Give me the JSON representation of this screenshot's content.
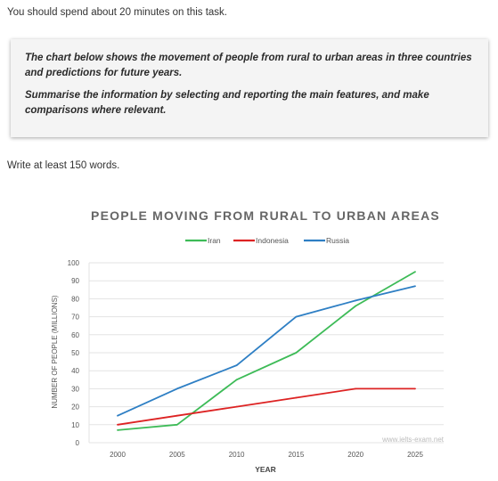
{
  "intro": "You should spend about 20 minutes on this task.",
  "task": {
    "paragraph1": "The chart below shows the movement of people from rural to urban areas in three countries and predictions for future years.",
    "paragraph2": "Summarise the information by selecting and reporting the main features, and make comparisons where relevant."
  },
  "write_prompt": "Write at least 150 words.",
  "watermark": "www.ielts-exam.net",
  "colors": {
    "Iran": "#3dbb57",
    "Indonesia": "#dd2323",
    "Russia": "#2e7fc4",
    "grid": "#e3e3e3"
  },
  "chart_data": {
    "type": "line",
    "title": "PEOPLE MOVING FROM RURAL TO URBAN AREAS",
    "xlabel": "YEAR",
    "ylabel": "NUMBER OF PEOPLE (MILLIONS)",
    "x": [
      2000,
      2005,
      2010,
      2015,
      2020,
      2025
    ],
    "x_ticks": [
      "2000",
      "2005",
      "2010",
      "2015",
      "2020",
      "2025"
    ],
    "y_ticks": [
      "0",
      "10",
      "20",
      "30",
      "40",
      "50",
      "60",
      "70",
      "80",
      "90",
      "100"
    ],
    "ylim": [
      0,
      100
    ],
    "grid": true,
    "legend_position": "top",
    "series": [
      {
        "name": "Iran",
        "values": [
          7,
          10,
          35,
          50,
          76,
          95
        ]
      },
      {
        "name": "Indonesia",
        "values": [
          10,
          15,
          20,
          25,
          30,
          30
        ]
      },
      {
        "name": "Russia",
        "values": [
          15,
          30,
          43,
          70,
          79,
          87
        ]
      }
    ]
  }
}
